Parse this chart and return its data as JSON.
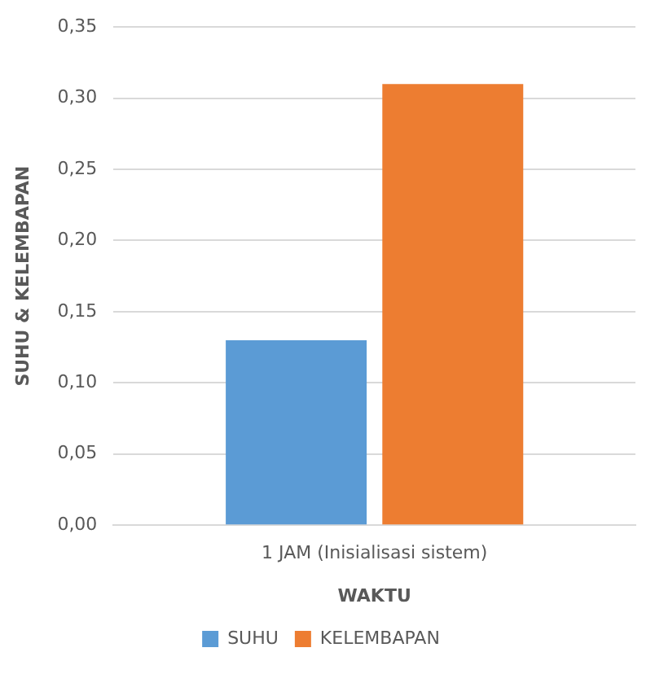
{
  "chart_data": {
    "type": "bar",
    "xlabel": "WAKTU",
    "ylabel": "SUHU & KELEMBAPAN",
    "categories": [
      "1 JAM (Inisialisasi sistem)"
    ],
    "series": [
      {
        "name": "SUHU",
        "color": "#5b9bd5",
        "values": [
          0.13
        ]
      },
      {
        "name": "KELEMBAPAN",
        "color": "#ed7d31",
        "values": [
          0.31
        ]
      }
    ],
    "ylim": [
      0,
      0.35
    ],
    "yticks": [
      {
        "value": 0,
        "label": "0,00"
      },
      {
        "value": 0.05,
        "label": "0,05"
      },
      {
        "value": 0.1,
        "label": "0,10"
      },
      {
        "value": 0.15,
        "label": "0,15"
      },
      {
        "value": 0.2,
        "label": "0,20"
      },
      {
        "value": 0.25,
        "label": "0,25"
      },
      {
        "value": 0.3,
        "label": "0,30"
      },
      {
        "value": 0.35,
        "label": "0,35"
      }
    ],
    "grid": "y",
    "legend": "bottom"
  }
}
